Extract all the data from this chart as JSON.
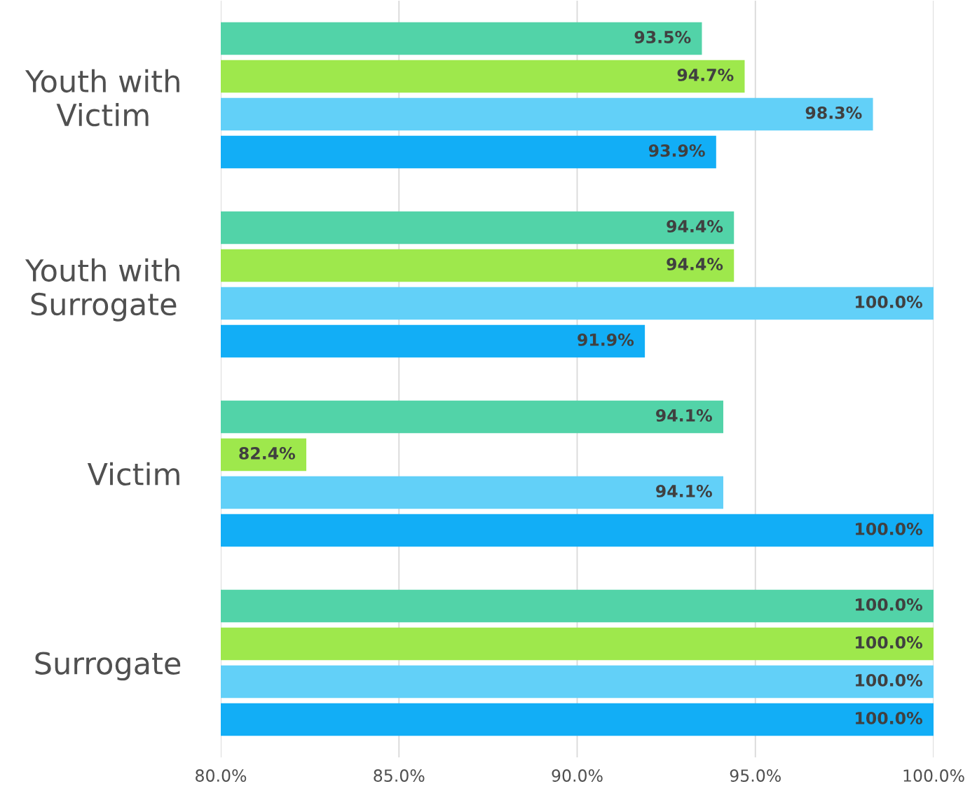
{
  "chart_data": {
    "type": "bar",
    "orientation": "horizontal",
    "categories": [
      "Youth with\nVictim",
      "Youth with\nSurrogate",
      "Victim",
      "Surrogate"
    ],
    "series": [
      {
        "color": "#52d3a8",
        "values": [
          93.5,
          94.4,
          94.1,
          100.0
        ],
        "value_labels": [
          "93.5%",
          "94.4%",
          "94.1%",
          "100.0%"
        ]
      },
      {
        "color": "#9ee84c",
        "values": [
          94.7,
          94.4,
          82.4,
          100.0
        ],
        "value_labels": [
          "94.7%",
          "94.4%",
          "82.4%",
          "100.0%"
        ]
      },
      {
        "color": "#62d0f8",
        "values": [
          98.3,
          100.0,
          94.1,
          100.0
        ],
        "value_labels": [
          "98.3%",
          "100.0%",
          "94.1%",
          "100.0%"
        ]
      },
      {
        "color": "#12aef6",
        "values": [
          93.9,
          91.9,
          100.0,
          100.0
        ],
        "value_labels": [
          "93.9%",
          "91.9%",
          "100.0%",
          "100.0%"
        ]
      }
    ],
    "xlim": [
      80,
      100
    ],
    "xticks": [
      {
        "value": 80,
        "label": "80.0%"
      },
      {
        "value": 85,
        "label": "85.0%"
      },
      {
        "value": 90,
        "label": "90.0%"
      },
      {
        "value": 95,
        "label": "95.0%"
      },
      {
        "value": 100,
        "label": "100.0%"
      }
    ],
    "grid": "x",
    "legend": false
  }
}
